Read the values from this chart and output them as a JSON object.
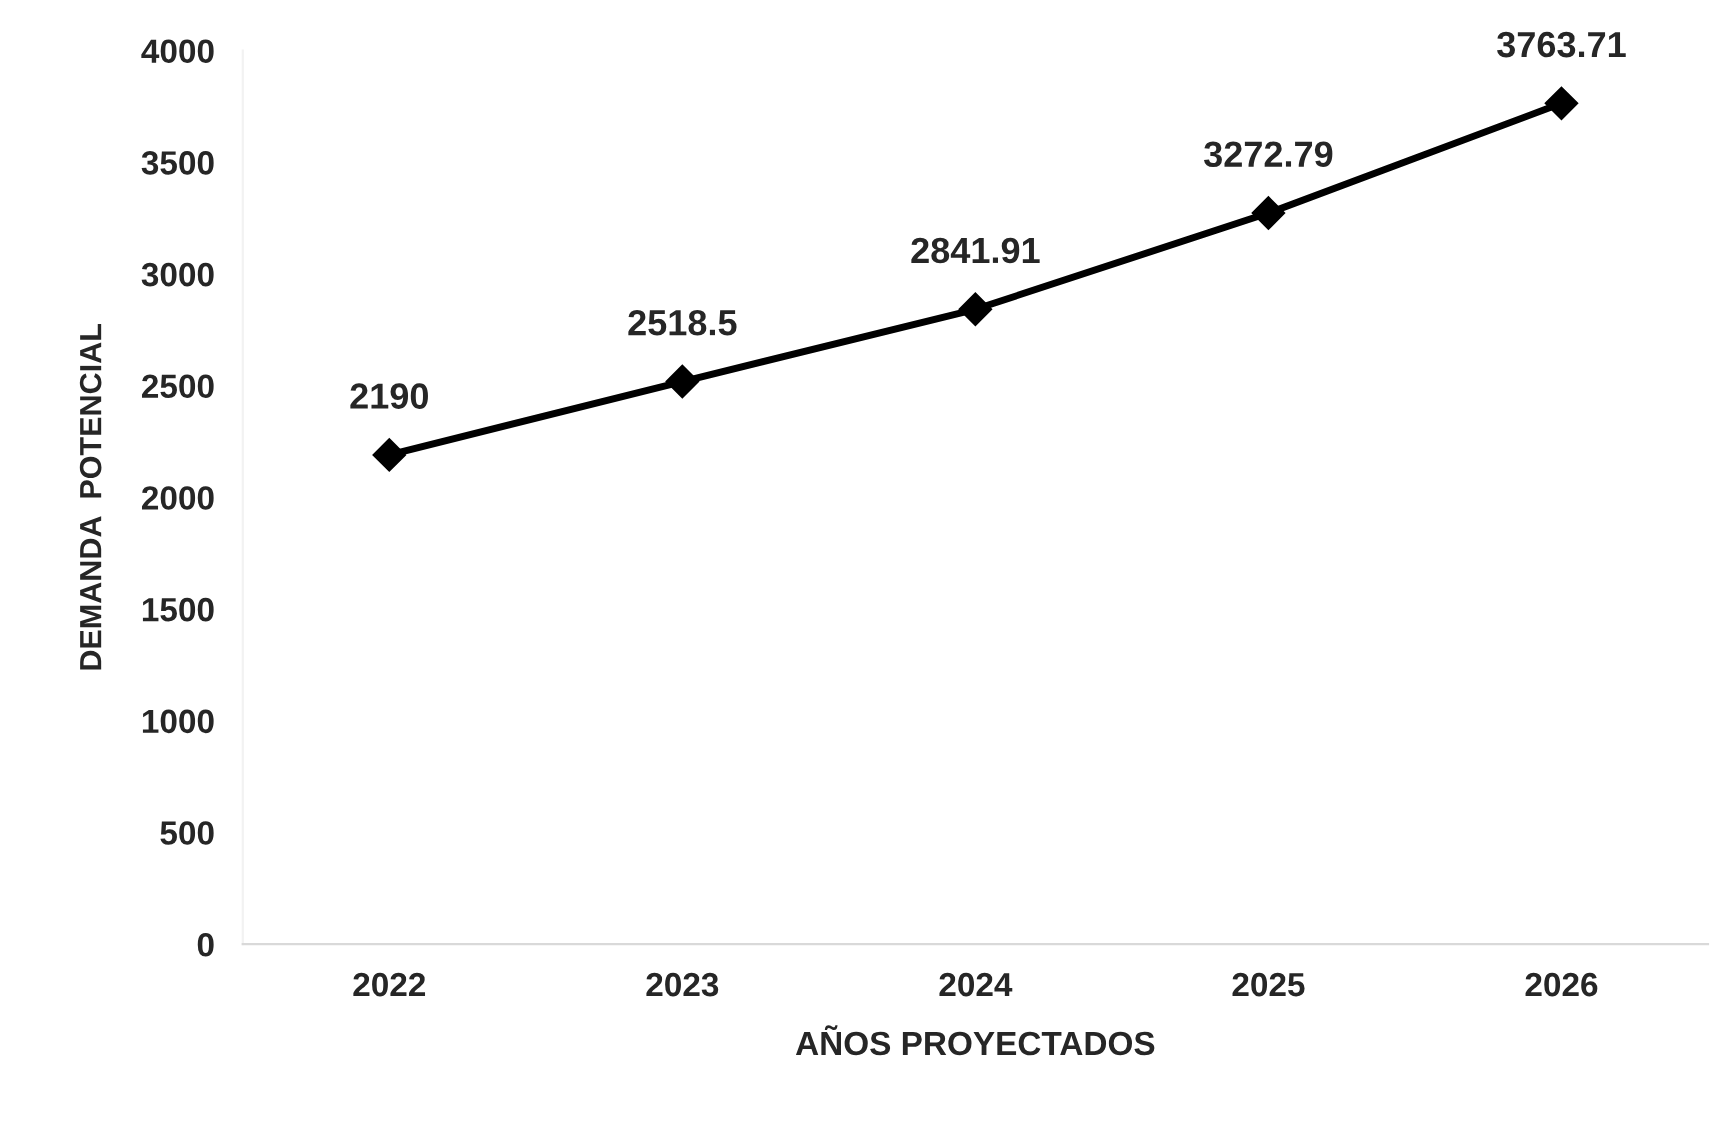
{
  "chart_data": {
    "type": "line",
    "xlabel": "AÑOS PROYECTADOS",
    "ylabel": "DEMANDA  POTENCIAL",
    "categories": [
      "2022",
      "2023",
      "2024",
      "2025",
      "2026"
    ],
    "series": [
      {
        "color": "#000000",
        "values": [
          2190,
          2518.5,
          2841.91,
          3272.79,
          3763.71
        ]
      }
    ],
    "ylim": [
      0,
      4000
    ],
    "yticks": [
      0,
      500,
      1000,
      1500,
      2000,
      2500,
      3000,
      3500,
      4000
    ],
    "data_labels": true,
    "grid": false,
    "legend": false,
    "marker": "diamond",
    "line_style": "solid"
  }
}
